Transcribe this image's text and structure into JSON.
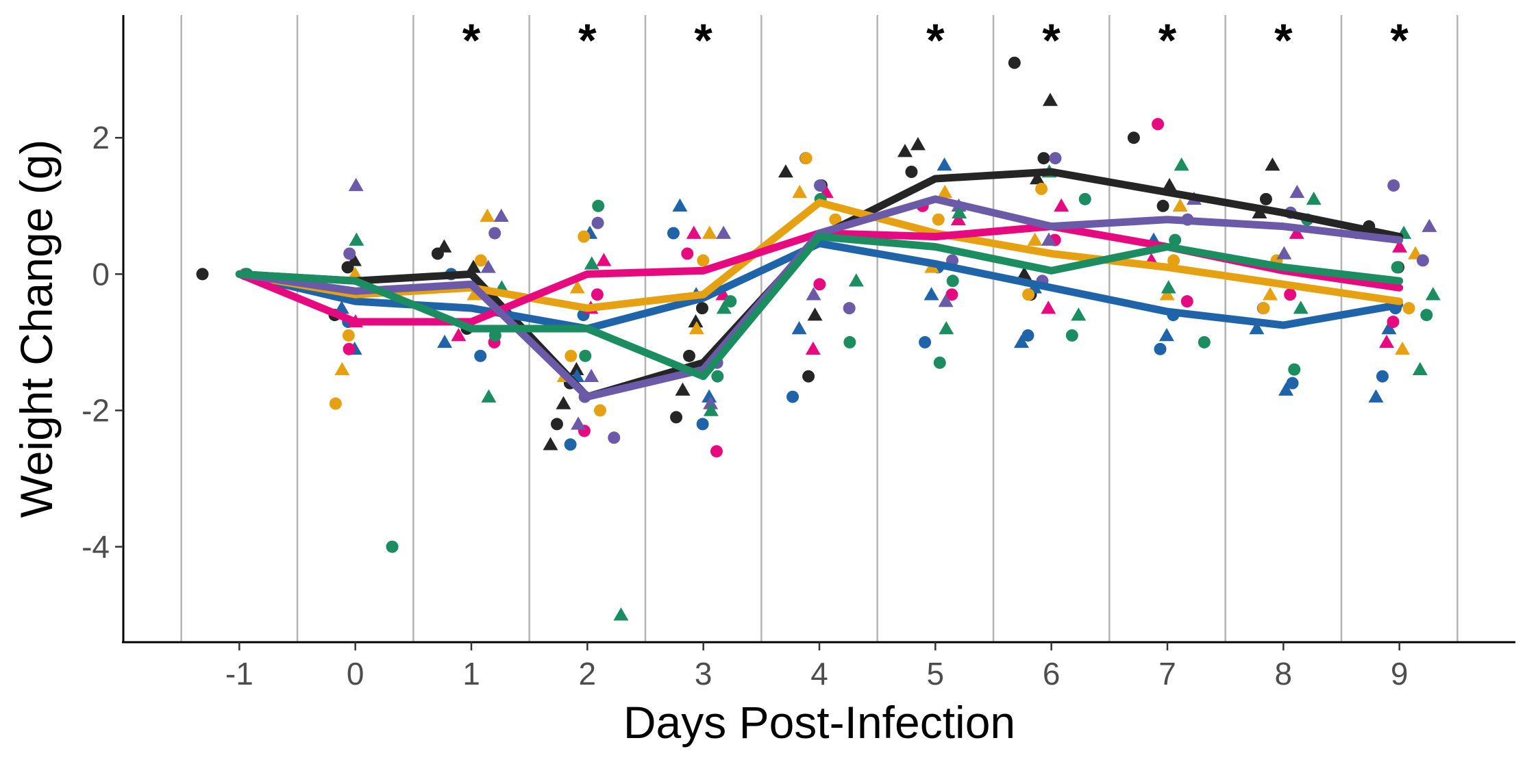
{
  "chart_data": {
    "type": "line",
    "title": "",
    "xlabel": "Days Post-Infection",
    "ylabel": "Weight Change (g)",
    "x": [
      -1,
      0,
      1,
      2,
      3,
      4,
      5,
      6,
      7,
      8,
      9
    ],
    "xlim": [
      -2,
      10
    ],
    "ylim": [
      -5.4,
      3.8
    ],
    "yticks": [
      -4,
      -2,
      0,
      2
    ],
    "grid": "vertical minor",
    "legend": "none",
    "significant_days": [
      1,
      2,
      3,
      5,
      6,
      7,
      8,
      9
    ],
    "significance_marker": "*",
    "series": [
      {
        "color": "#252525",
        "mean": [
          0,
          -0.1,
          0.0,
          -1.8,
          -1.3,
          0.55,
          1.4,
          1.5,
          1.2,
          0.9,
          0.55
        ],
        "points": [
          [
            -1,
            0
          ],
          [
            0,
            0.2
          ],
          [
            0,
            0.1
          ],
          [
            0,
            -0.3
          ],
          [
            0,
            -0.6
          ],
          [
            1,
            0.4
          ],
          [
            1,
            0.3
          ],
          [
            1,
            0.1
          ],
          [
            1,
            -0.8
          ],
          [
            2,
            -1.4
          ],
          [
            2,
            -1.6
          ],
          [
            2,
            -1.9
          ],
          [
            2,
            -2.2
          ],
          [
            2,
            -2.5
          ],
          [
            3,
            -0.5
          ],
          [
            3,
            -0.7
          ],
          [
            3,
            -1.2
          ],
          [
            3,
            -1.7
          ],
          [
            3,
            -2.1
          ],
          [
            4,
            1.5
          ],
          [
            4,
            1.3
          ],
          [
            4,
            -0.6
          ],
          [
            4,
            -1.5
          ],
          [
            5,
            1.9
          ],
          [
            5,
            1.5
          ],
          [
            5,
            1.8
          ],
          [
            6,
            3.1
          ],
          [
            6,
            2.55
          ],
          [
            6,
            1.7
          ],
          [
            6,
            1.4
          ],
          [
            6,
            -0.3
          ],
          [
            6,
            0
          ],
          [
            7,
            2.0
          ],
          [
            7,
            1.3
          ],
          [
            7,
            1.0
          ],
          [
            8,
            1.6
          ],
          [
            8,
            1.1
          ],
          [
            8,
            0.9
          ],
          [
            9,
            0.7
          ],
          [
            9,
            0.6
          ],
          [
            9,
            0.1
          ]
        ]
      },
      {
        "color": "#1f63a8",
        "mean": [
          0,
          -0.4,
          -0.5,
          -0.8,
          -0.35,
          0.45,
          0.15,
          -0.2,
          -0.55,
          -0.75,
          -0.45
        ],
        "points": [
          [
            -1,
            0
          ],
          [
            0,
            -1.1
          ],
          [
            0,
            -0.7
          ],
          [
            0,
            -0.5
          ],
          [
            1,
            0
          ],
          [
            1,
            -1.0
          ],
          [
            1,
            -1.2
          ],
          [
            2,
            0.6
          ],
          [
            2,
            -0.6
          ],
          [
            2,
            -1.5
          ],
          [
            2,
            -2.5
          ],
          [
            3,
            1.0
          ],
          [
            3,
            0.6
          ],
          [
            3,
            -1.8
          ],
          [
            3,
            -2.2
          ],
          [
            3,
            -0.3
          ],
          [
            4,
            1.7
          ],
          [
            4,
            -0.8
          ],
          [
            4,
            -1.8
          ],
          [
            5,
            1.6
          ],
          [
            5,
            0.1
          ],
          [
            5,
            -0.3
          ],
          [
            5,
            -1.0
          ],
          [
            6,
            -0.2
          ],
          [
            6,
            -0.9
          ],
          [
            6,
            -1.0
          ],
          [
            7,
            -0.6
          ],
          [
            7,
            -0.9
          ],
          [
            7,
            -1.1
          ],
          [
            7,
            0.5
          ],
          [
            8,
            -0.5
          ],
          [
            8,
            -0.8
          ],
          [
            8,
            -1.6
          ],
          [
            8,
            -1.7
          ],
          [
            9,
            -0.5
          ],
          [
            9,
            -0.8
          ],
          [
            9,
            -1.5
          ],
          [
            9,
            -1.8
          ]
        ]
      },
      {
        "color": "#e5a112",
        "mean": [
          0,
          -0.3,
          -0.2,
          -0.5,
          -0.3,
          1.05,
          0.6,
          0.3,
          0.1,
          -0.15,
          -0.4
        ],
        "points": [
          [
            -1,
            0
          ],
          [
            0,
            0
          ],
          [
            0,
            -0.9
          ],
          [
            0,
            -1.4
          ],
          [
            0,
            -1.9
          ],
          [
            1,
            0.85
          ],
          [
            1,
            0.2
          ],
          [
            1,
            -0.3
          ],
          [
            2,
            0.55
          ],
          [
            2,
            -0.2
          ],
          [
            2,
            -1.2
          ],
          [
            2,
            -1.5
          ],
          [
            2,
            -2.0
          ],
          [
            3,
            0.6
          ],
          [
            3,
            0.2
          ],
          [
            3,
            -0.8
          ],
          [
            4,
            1.7
          ],
          [
            4,
            1.2
          ],
          [
            4,
            0.8
          ],
          [
            5,
            1.2
          ],
          [
            5,
            0.8
          ],
          [
            5,
            0.1
          ],
          [
            6,
            1.25
          ],
          [
            6,
            0.5
          ],
          [
            6,
            -0.3
          ],
          [
            7,
            1.0
          ],
          [
            7,
            0.2
          ],
          [
            7,
            -0.3
          ],
          [
            8,
            0.2
          ],
          [
            8,
            -0.3
          ],
          [
            8,
            -0.5
          ],
          [
            9,
            0.3
          ],
          [
            9,
            -0.5
          ],
          [
            9,
            -1.1
          ]
        ]
      },
      {
        "color": "#e7097f",
        "mean": [
          0,
          -0.7,
          -0.7,
          0.0,
          0.05,
          0.6,
          0.55,
          0.7,
          0.4,
          0.05,
          -0.2
        ],
        "points": [
          [
            -1,
            0
          ],
          [
            0,
            -0.7
          ],
          [
            0,
            -1.1
          ],
          [
            1,
            -0.9
          ],
          [
            1,
            -1.0
          ],
          [
            2,
            0.2
          ],
          [
            2,
            -0.3
          ],
          [
            2,
            -0.5
          ],
          [
            2,
            -2.3
          ],
          [
            3,
            0.6
          ],
          [
            3,
            0.3
          ],
          [
            3,
            -0.3
          ],
          [
            3,
            -2.6
          ],
          [
            4,
            1.2
          ],
          [
            4,
            -0.15
          ],
          [
            4,
            -1.1
          ],
          [
            5,
            1.0
          ],
          [
            5,
            0.8
          ],
          [
            5,
            -0.3
          ],
          [
            6,
            1.0
          ],
          [
            6,
            0.5
          ],
          [
            6,
            -0.5
          ],
          [
            7,
            2.2
          ],
          [
            7,
            0.2
          ],
          [
            7,
            -0.4
          ],
          [
            8,
            0.6
          ],
          [
            8,
            -0.3
          ],
          [
            9,
            0.4
          ],
          [
            9,
            -0.7
          ],
          [
            9,
            -1.0
          ]
        ]
      },
      {
        "color": "#6a5aa8",
        "mean": [
          0,
          -0.25,
          -0.15,
          -1.8,
          -1.4,
          0.6,
          1.1,
          0.7,
          0.8,
          0.7,
          0.5
        ],
        "points": [
          [
            -1,
            0
          ],
          [
            0,
            1.3
          ],
          [
            0,
            0.3
          ],
          [
            1,
            0.85
          ],
          [
            1,
            0.6
          ],
          [
            1,
            0.1
          ],
          [
            2,
            0.75
          ],
          [
            2,
            -1.5
          ],
          [
            2,
            -1.8
          ],
          [
            2,
            -2.2
          ],
          [
            2,
            -2.4
          ],
          [
            3,
            0.6
          ],
          [
            3,
            -1.3
          ],
          [
            3,
            -1.9
          ],
          [
            4,
            1.3
          ],
          [
            4,
            -0.3
          ],
          [
            4,
            -0.5
          ],
          [
            5,
            1.0
          ],
          [
            5,
            0.2
          ],
          [
            5,
            -0.4
          ],
          [
            6,
            1.7
          ],
          [
            6,
            0.5
          ],
          [
            6,
            -0.1
          ],
          [
            7,
            1.1
          ],
          [
            7,
            0.8
          ],
          [
            8,
            1.2
          ],
          [
            8,
            0.9
          ],
          [
            8,
            0.3
          ],
          [
            9,
            1.3
          ],
          [
            9,
            0.7
          ],
          [
            9,
            0.2
          ]
        ]
      },
      {
        "color": "#1c8c61",
        "mean": [
          0,
          -0.1,
          -0.8,
          -0.8,
          -1.5,
          0.55,
          0.4,
          0.05,
          0.4,
          0.1,
          -0.1
        ],
        "points": [
          [
            -1,
            0
          ],
          [
            0,
            0.5
          ],
          [
            0,
            -4.0
          ],
          [
            1,
            -0.2
          ],
          [
            1,
            -0.9
          ],
          [
            1,
            -1.8
          ],
          [
            2,
            1.0
          ],
          [
            2,
            0.15
          ],
          [
            2,
            -1.2
          ],
          [
            2,
            -5.0
          ],
          [
            3,
            -0.4
          ],
          [
            3,
            -0.5
          ],
          [
            3,
            -1.5
          ],
          [
            3,
            -2.0
          ],
          [
            4,
            1.1
          ],
          [
            4,
            -0.1
          ],
          [
            4,
            -1.0
          ],
          [
            5,
            0.9
          ],
          [
            5,
            -0.1
          ],
          [
            5,
            -0.8
          ],
          [
            5,
            -1.3
          ],
          [
            6,
            1.5
          ],
          [
            6,
            1.1
          ],
          [
            6,
            -0.6
          ],
          [
            6,
            -0.9
          ],
          [
            7,
            1.6
          ],
          [
            7,
            0.5
          ],
          [
            7,
            -0.2
          ],
          [
            7,
            -1.0
          ],
          [
            8,
            1.1
          ],
          [
            8,
            0.8
          ],
          [
            8,
            -0.5
          ],
          [
            8,
            -1.4
          ],
          [
            9,
            0.6
          ],
          [
            9,
            0.1
          ],
          [
            9,
            -0.3
          ],
          [
            9,
            -0.6
          ],
          [
            9,
            -1.4
          ]
        ]
      }
    ]
  }
}
